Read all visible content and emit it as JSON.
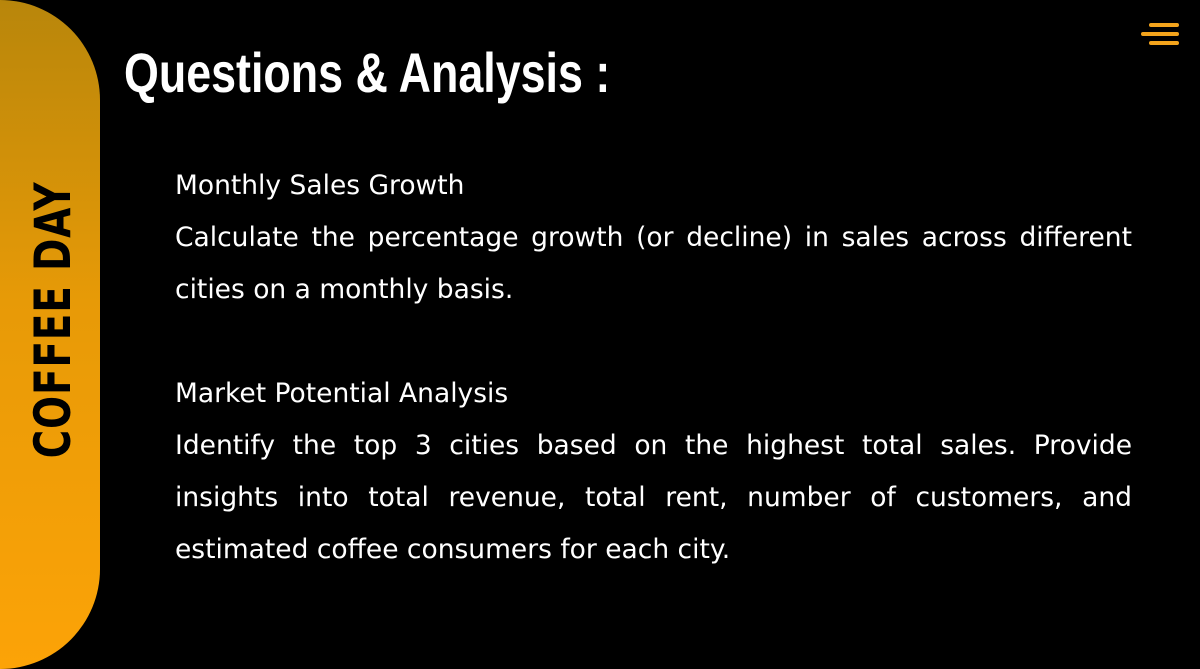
{
  "brand": {
    "name": "COFFEE DAY"
  },
  "slide": {
    "title": "Questions & Analysis :",
    "sections": [
      {
        "heading": "Monthly Sales Growth",
        "description": "Calculate the percentage growth (or decline) in sales across different cities on a monthly basis."
      },
      {
        "heading": "Market Potential Analysis",
        "description": "Identify the top 3 cities based on the highest total sales. Provide insights into total revenue, total rent, number of customers, and estimated coffee consumers for each city."
      }
    ]
  },
  "icons": {
    "menu": "menu-icon"
  },
  "colors": {
    "background": "#000000",
    "accent_top": "#b8860b",
    "accent_bottom": "#fca307",
    "text": "#ffffff"
  }
}
